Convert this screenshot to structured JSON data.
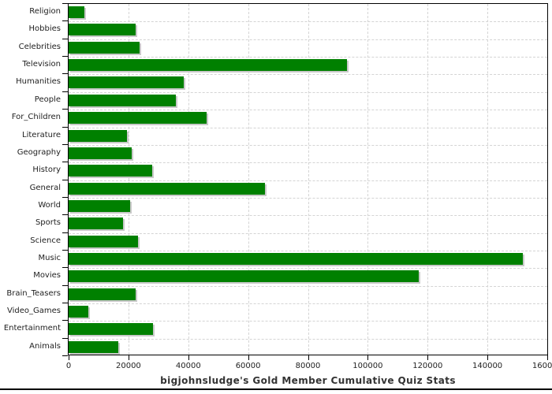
{
  "chart_data": {
    "type": "bar",
    "orientation": "horizontal",
    "title": "bigjohnsludge's Gold Member Cumulative Quiz Stats",
    "categories": [
      "Religion",
      "Hobbies",
      "Celebrities",
      "Television",
      "Humanities",
      "People",
      "For_Children",
      "Literature",
      "Geography",
      "History",
      "General",
      "World",
      "Sports",
      "Science",
      "Music",
      "Movies",
      "Brain_Teasers",
      "Video_Games",
      "Entertainment",
      "Animals"
    ],
    "values": [
      5300,
      22400,
      23700,
      93000,
      38500,
      35900,
      46000,
      19600,
      21200,
      28000,
      65700,
      20500,
      18200,
      23200,
      151700,
      116900,
      22300,
      6700,
      28200,
      16700
    ],
    "xlim": [
      0,
      160000
    ],
    "x_ticks": [
      0,
      20000,
      40000,
      60000,
      80000,
      100000,
      120000,
      140000,
      160000
    ],
    "x_tick_labels": [
      "0",
      "20000",
      "40000",
      "60000",
      "80000",
      "100000",
      "120000",
      "140000",
      "160000"
    ],
    "grid": "dashed",
    "legend": "none",
    "bar_color": "#008000",
    "bar_shadow_color": "#c9c9c9",
    "grid_color": "#d4d4d4",
    "axis_color": "#000000",
    "text_color": "#222222",
    "title_color": "#333333"
  }
}
